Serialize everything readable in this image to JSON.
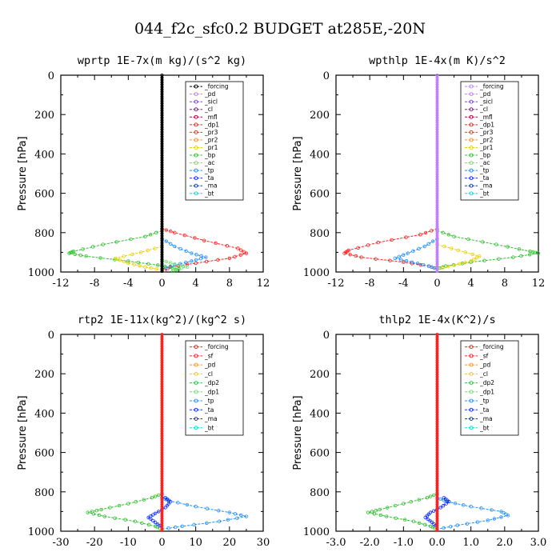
{
  "title": "044_f2c_sfc0.2  BUDGET at285E,-20N",
  "colors": {
    "forcing": "#000000",
    "pd": "#c080ff",
    "sicl": "#8040ff",
    "cl": "#7a2a7a",
    "mfl": "#c00040",
    "dp1": "#ff2020",
    "pr3": "#ff3030",
    "pr2": "#ff9020",
    "pr1": "#e8d000",
    "bp": "#30c030",
    "ac": "#70e070",
    "tp": "#2090ff",
    "ta": "#1030ff",
    "ma": "#1040a0",
    "bt": "#00e0e0",
    "sf": "#ff2020"
  },
  "chart_data": [
    {
      "type": "line",
      "title": "wprtp  1E-7x(m kg)/(s^2 kg)",
      "ylabel": "Pressure [hPa]",
      "xlim": [
        -12,
        12
      ],
      "ylim": [
        1000,
        0
      ],
      "xticks": [
        -12,
        -8,
        -4,
        0,
        4,
        8,
        12
      ],
      "xtick_labels": [
        "-12",
        "-8",
        "-4",
        "0",
        "4",
        "8",
        "12"
      ],
      "yticks": [
        0,
        200,
        400,
        600,
        800,
        1000
      ],
      "legend": [
        "_forcing",
        "_pd",
        "_sicl",
        "_cl",
        "_mfl",
        "_dp1",
        "_pr3",
        "_pr2",
        "_pr1",
        "_bp",
        "_ac",
        "_tp",
        "_ta",
        "_ma",
        "_bt"
      ],
      "series": [
        {
          "name": "_dp1",
          "color": "dp1",
          "points": [
            [
              0,
              780
            ],
            [
              1.5,
              800
            ],
            [
              5,
              840
            ],
            [
              9,
              880
            ],
            [
              10,
              905
            ],
            [
              8,
              930
            ],
            [
              4,
              955
            ],
            [
              1,
              975
            ],
            [
              0,
              1000
            ]
          ]
        },
        {
          "name": "_tp",
          "color": "tp",
          "points": [
            [
              0,
              830
            ],
            [
              1.5,
              870
            ],
            [
              3.5,
              905
            ],
            [
              5.2,
              925
            ],
            [
              3.5,
              945
            ],
            [
              1.5,
              965
            ],
            [
              0,
              985
            ]
          ]
        },
        {
          "name": "_bp",
          "color": "bp",
          "points": [
            [
              0,
              790
            ],
            [
              -2,
              820
            ],
            [
              -7,
              860
            ],
            [
              -10.5,
              895
            ],
            [
              -11,
              905
            ],
            [
              -9,
              920
            ],
            [
              -4,
              945
            ],
            [
              -0.5,
              965
            ],
            [
              2,
              985
            ],
            [
              1,
              1000
            ]
          ]
        },
        {
          "name": "_pr1",
          "color": "pr1",
          "points": [
            [
              0,
              870
            ],
            [
              -2.5,
              900
            ],
            [
              -5.5,
              930
            ],
            [
              -4,
              955
            ],
            [
              -2,
              975
            ],
            [
              0,
              990
            ]
          ]
        },
        {
          "name": "_ac",
          "color": "ac",
          "points": [
            [
              0,
              940
            ],
            [
              1.5,
              960
            ],
            [
              3,
              975
            ],
            [
              1,
              990
            ]
          ]
        },
        {
          "name": "_forcing",
          "color": "forcing",
          "points": [
            [
              0,
              0
            ],
            [
              0,
              1000
            ]
          ],
          "dense": true
        }
      ]
    },
    {
      "type": "line",
      "title": "wpthlp  1E-4x(m K)/s^2",
      "ylabel": "Pressure [hPa]",
      "xlim": [
        -12,
        12
      ],
      "ylim": [
        1000,
        0
      ],
      "xticks": [
        -12,
        -8,
        -4,
        0,
        4,
        8,
        12
      ],
      "xtick_labels": [
        "-12",
        "-8",
        "-4",
        "0",
        "4",
        "8",
        "12"
      ],
      "yticks": [
        0,
        200,
        400,
        600,
        800,
        1000
      ],
      "legend": [
        "_forcing",
        "_pd",
        "_sicl",
        "_cl",
        "_mfl",
        "_dp1",
        "_pr3",
        "_pr2",
        "_pr1",
        "_bp",
        "_ac",
        "_tp",
        "_ta",
        "_ma",
        "_bt"
      ],
      "series": [
        {
          "name": "_dp1",
          "color": "dp1",
          "points": [
            [
              0,
              780
            ],
            [
              -2,
              810
            ],
            [
              -7,
              850
            ],
            [
              -10.5,
              890
            ],
            [
              -11,
              905
            ],
            [
              -9,
              925
            ],
            [
              -4,
              950
            ],
            [
              -1,
              970
            ],
            [
              0,
              985
            ]
          ]
        },
        {
          "name": "_tp",
          "color": "tp",
          "points": [
            [
              0,
              830
            ],
            [
              -1.5,
              870
            ],
            [
              -3.5,
              905
            ],
            [
              -5,
              930
            ],
            [
              -3,
              950
            ],
            [
              -1,
              970
            ],
            [
              0,
              985
            ]
          ]
        },
        {
          "name": "_bp",
          "color": "bp",
          "points": [
            [
              0,
              790
            ],
            [
              2,
              820
            ],
            [
              7,
              860
            ],
            [
              11,
              895
            ],
            [
              12,
              905
            ],
            [
              9,
              925
            ],
            [
              4,
              950
            ],
            [
              1,
              970
            ],
            [
              0,
              985
            ]
          ]
        },
        {
          "name": "_pr1",
          "color": "pr1",
          "points": [
            [
              0,
              860
            ],
            [
              2.5,
              890
            ],
            [
              5,
              920
            ],
            [
              4,
              945
            ],
            [
              2,
              965
            ],
            [
              0,
              985
            ]
          ]
        },
        {
          "name": "_pd",
          "color": "pd",
          "points": [
            [
              0,
              0
            ],
            [
              0,
              1000
            ]
          ],
          "dense": true
        }
      ]
    },
    {
      "type": "line",
      "title": "rtp2  1E-11x(kg^2)/(kg^2 s)",
      "ylabel": "Pressure [hPa]",
      "xlim": [
        -30,
        30
      ],
      "ylim": [
        1000,
        0
      ],
      "xticks": [
        -30,
        -20,
        -10,
        0,
        10,
        20,
        30
      ],
      "xtick_labels": [
        "-30",
        "-20",
        "-10",
        "0",
        "10",
        "20",
        "30"
      ],
      "yticks": [
        0,
        200,
        400,
        600,
        800,
        1000
      ],
      "legend": [
        "_forcing",
        "_sf",
        "_pd",
        "_cl",
        "_dp2",
        "_dp1",
        "_tp",
        "_ta",
        "_ma",
        "_bt"
      ],
      "series": [
        {
          "name": "_dp1",
          "color": "bp",
          "points": [
            [
              0,
              810
            ],
            [
              -3,
              830
            ],
            [
              -10,
              860
            ],
            [
              -18,
              890
            ],
            [
              -22,
              905
            ],
            [
              -17,
              925
            ],
            [
              -8,
              950
            ],
            [
              -2,
              975
            ],
            [
              0,
              990
            ]
          ]
        },
        {
          "name": "_tp",
          "color": "tp",
          "points": [
            [
              0,
              830
            ],
            [
              2,
              845
            ],
            [
              10,
              875
            ],
            [
              20,
              905
            ],
            [
              25,
              925
            ],
            [
              17,
              950
            ],
            [
              6,
              975
            ],
            [
              0,
              990
            ]
          ]
        },
        {
          "name": "_ta",
          "color": "ta",
          "points": [
            [
              1,
              830
            ],
            [
              2.5,
              850
            ],
            [
              1,
              880
            ],
            [
              -2,
              910
            ],
            [
              -4,
              930
            ],
            [
              -2,
              955
            ],
            [
              0,
              980
            ]
          ]
        },
        {
          "name": "_forcing",
          "color": "sf",
          "points": [
            [
              0,
              0
            ],
            [
              0,
              1000
            ]
          ],
          "dense": true
        }
      ]
    },
    {
      "type": "line",
      "title": "thlp2  1E-4x(K^2)/s",
      "ylabel": "Pressure [hPa]",
      "xlim": [
        -3,
        3
      ],
      "ylim": [
        1000,
        0
      ],
      "xticks": [
        -3,
        -2,
        -1,
        0,
        1,
        2,
        3
      ],
      "xtick_labels": [
        "-3.0",
        "-2.0",
        "-1.0",
        "0.0",
        "1.0",
        "2.0",
        "3.0"
      ],
      "yticks": [
        0,
        200,
        400,
        600,
        800,
        1000
      ],
      "legend": [
        "_forcing",
        "_sf",
        "_pd",
        "_cl",
        "_dp2",
        "_dp1",
        "_tp",
        "_ta",
        "_ma",
        "_bt"
      ],
      "series": [
        {
          "name": "_dp1",
          "color": "bp",
          "points": [
            [
              0,
              810
            ],
            [
              -0.3,
              830
            ],
            [
              -1,
              860
            ],
            [
              -1.7,
              890
            ],
            [
              -2.05,
              905
            ],
            [
              -1.5,
              925
            ],
            [
              -0.7,
              950
            ],
            [
              -0.2,
              975
            ],
            [
              0,
              990
            ]
          ]
        },
        {
          "name": "_tp",
          "color": "tp",
          "points": [
            [
              0,
              830
            ],
            [
              0.3,
              850
            ],
            [
              1,
              875
            ],
            [
              1.9,
              900
            ],
            [
              2.1,
              920
            ],
            [
              1.5,
              945
            ],
            [
              0.6,
              970
            ],
            [
              0,
              990
            ]
          ]
        },
        {
          "name": "_ta",
          "color": "ta",
          "points": [
            [
              0.2,
              830
            ],
            [
              0.35,
              850
            ],
            [
              0.1,
              880
            ],
            [
              -0.2,
              905
            ],
            [
              -0.35,
              930
            ],
            [
              -0.15,
              955
            ],
            [
              0,
              980
            ]
          ]
        },
        {
          "name": "_forcing",
          "color": "sf",
          "points": [
            [
              0,
              0
            ],
            [
              0,
              1000
            ]
          ],
          "dense": true
        }
      ]
    }
  ]
}
